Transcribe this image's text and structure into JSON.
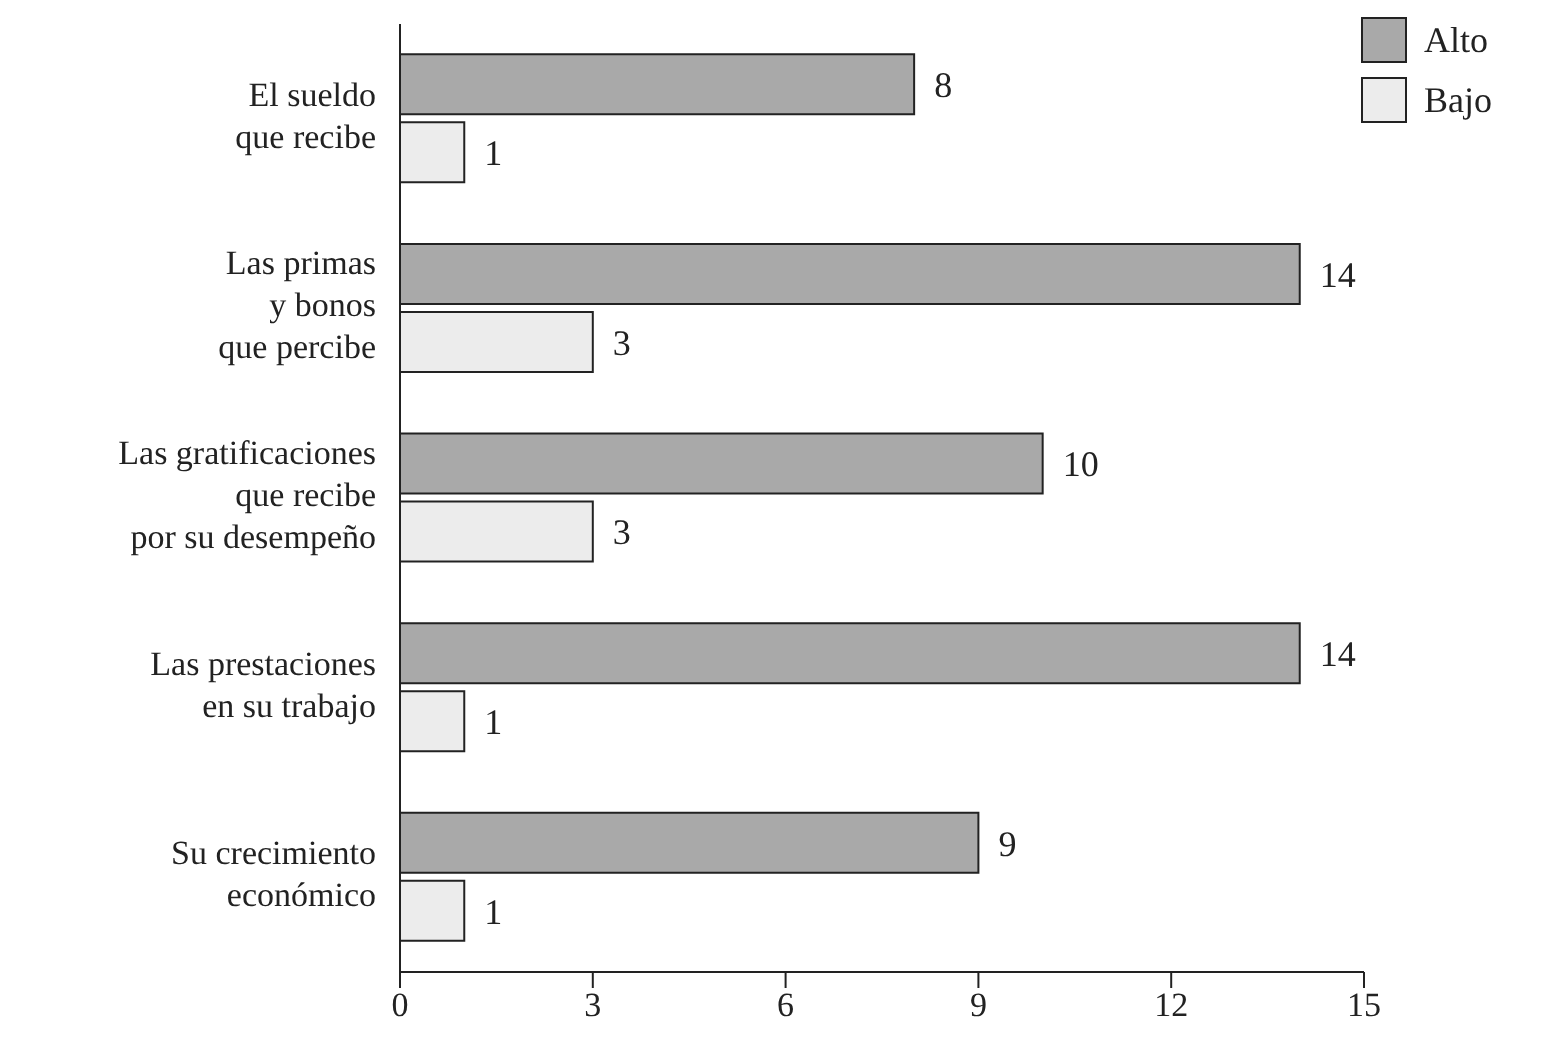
{
  "chart_data": {
    "type": "bar",
    "orientation": "horizontal",
    "categories": [
      "El sueldo\nque recibe",
      "Las primas\ny bonos\nque percibe",
      "Las gratificaciones\nque recibe\npor su desempeño",
      "Las prestaciones\nen su trabajo",
      "Su crecimiento\neconómico"
    ],
    "series": [
      {
        "name": "Alto",
        "color": "#a9a9a9",
        "values": [
          8,
          14,
          10,
          14,
          9
        ]
      },
      {
        "name": "Bajo",
        "color": "#ececec",
        "values": [
          1,
          3,
          3,
          1,
          1
        ]
      }
    ],
    "xlim": [
      0,
      15
    ],
    "xticks": [
      0,
      3,
      6,
      9,
      12,
      15
    ],
    "data_labels": true,
    "legend": "top right",
    "grid": false
  }
}
